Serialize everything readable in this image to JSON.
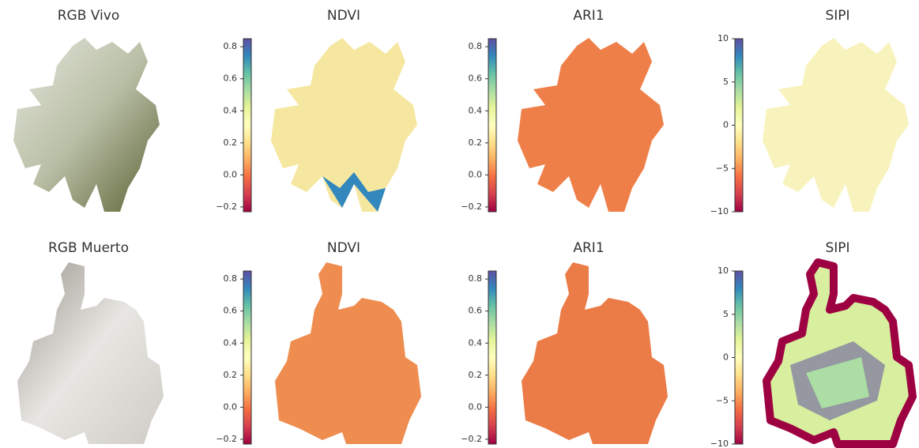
{
  "chart_data": [
    {
      "type": "image",
      "title": "RGB Vivo"
    },
    {
      "type": "heatmap",
      "title": "NDVI",
      "colormap": "Spectral",
      "clim": [
        -0.23,
        0.85
      ],
      "cticks": [
        {
          "value": -0.2,
          "label": "−0.2"
        },
        {
          "value": 0,
          "label": "0.0"
        },
        0.2,
        0.4,
        0.6,
        0.8
      ]
    },
    {
      "type": "heatmap",
      "title": "ARI1",
      "colormap": "Spectral",
      "clim": [
        -0.23,
        0.85
      ],
      "cticks": [
        {
          "value": -0.2,
          "label": "−0.2"
        },
        {
          "value": 0,
          "label": "0.0"
        },
        0.2,
        0.4,
        0.6,
        0.8
      ]
    },
    {
      "type": "heatmap",
      "title": "SIPI",
      "colormap": "Spectral",
      "clim": [
        -10,
        10
      ],
      "cticks": [
        {
          "value": -10,
          "label": "−10"
        },
        {
          "value": -5,
          "label": "−5"
        },
        0,
        5,
        10
      ]
    },
    {
      "type": "image",
      "title": "RGB Muerto"
    },
    {
      "type": "heatmap",
      "title": "NDVI",
      "colormap": "Spectral",
      "clim": [
        -0.23,
        0.85
      ],
      "cticks": [
        {
          "value": -0.2,
          "label": "−0.2"
        },
        {
          "value": 0,
          "label": "0.0"
        },
        0.2,
        0.4,
        0.6,
        0.8
      ]
    },
    {
      "type": "heatmap",
      "title": "ARI1",
      "colormap": "Spectral",
      "clim": [
        -0.23,
        0.85
      ],
      "cticks": [
        {
          "value": -0.2,
          "label": "−0.2"
        },
        {
          "value": 0,
          "label": "0.0"
        },
        0.2,
        0.4,
        0.6,
        0.8
      ]
    },
    {
      "type": "heatmap",
      "title": "SIPI",
      "colormap": "Spectral",
      "clim": [
        -10,
        10
      ],
      "cticks": [
        {
          "value": -10,
          "label": "−10"
        },
        {
          "value": -5,
          "label": "−5"
        },
        0,
        5,
        10
      ]
    }
  ]
}
